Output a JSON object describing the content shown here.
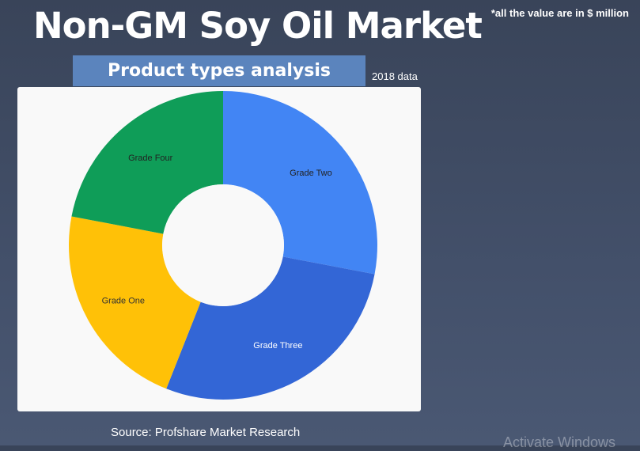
{
  "header": {
    "title": "Non-GM Soy Oil Market",
    "note": "*all the value are in $ million",
    "subtitle": "Product types analysis",
    "year": "2018 data"
  },
  "footer": {
    "source": "Source: Profshare Market Research",
    "watermark": "Activate Windows"
  },
  "chart_data": {
    "type": "pie",
    "donut": true,
    "labels": [
      "Grade Two",
      "Grade Three",
      "Grade One",
      "Grade Four"
    ],
    "values": [
      28,
      28,
      22,
      22
    ],
    "colors": [
      "#4285f4",
      "#3366d6",
      "#ffc107",
      "#0f9d58"
    ],
    "label_colors": [
      "#222222",
      "#ffffff",
      "#333333",
      "#222222"
    ],
    "start_angle": "12 o'clock",
    "direction": "clockwise",
    "legend": "none"
  }
}
